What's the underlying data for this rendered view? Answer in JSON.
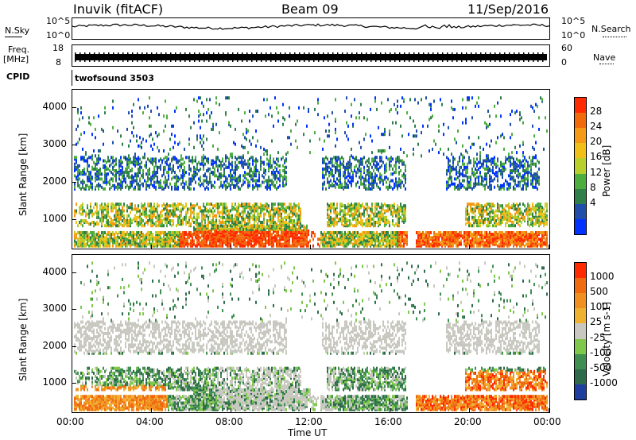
{
  "header": {
    "station": "Inuvik (fitACF)",
    "beam": "Beam 09",
    "date": "11/Sep/2016"
  },
  "top_panels": {
    "nsky_label": "N.Sky",
    "nsky_ticks": [
      "10^5",
      "10^0"
    ],
    "nsearch_label": "N.Search",
    "nsearch_ticks": [
      "10^5",
      "10^0"
    ],
    "freq_label": "Freq.",
    "freq_unit": "[MHz]",
    "freq_ticks": [
      "18",
      "8"
    ],
    "nave_label": "Nave",
    "nave_ticks": [
      "60",
      "0"
    ],
    "cpid_label": "CPID",
    "cpid_value": "twofsound 3503"
  },
  "chart_data": [
    {
      "type": "heatmap",
      "name": "power-panel",
      "ylabel": "Slant Range [km]",
      "ylim": [
        180,
        4500
      ],
      "yticks": [
        "1000",
        "2000",
        "3000",
        "4000"
      ],
      "colorbar_label": "Power [dB]",
      "colorbar_ticks": [
        "28",
        "24",
        "20",
        "16",
        "12",
        "8",
        "4"
      ],
      "colors": [
        "#0033ff",
        "#1f4fa8",
        "#2f7f4a",
        "#4cae3c",
        "#b7d02c",
        "#f0c018",
        "#f49a14",
        "#f06a0c",
        "#ff2a00"
      ]
    },
    {
      "type": "heatmap",
      "name": "velocity-panel",
      "ylabel": "Slant Range [km]",
      "ylim": [
        180,
        4500
      ],
      "yticks": [
        "1000",
        "2000",
        "3000",
        "4000"
      ],
      "xticks": [
        "00:00",
        "04:00",
        "08:00",
        "12:00",
        "16:00",
        "20:00",
        "00:00"
      ],
      "xlabel": "Time UT",
      "colorbar_label": "Velocity [m s-1]",
      "colorbar_ticks": [
        "1000",
        "500",
        "100",
        "25",
        "-25",
        "-100",
        "-500",
        "-1000"
      ],
      "colors": [
        "#1f3fa0",
        "#2e6b4a",
        "#3f8f52",
        "#7fc84a",
        "#c8c8c0",
        "#f0b030",
        "#f09020",
        "#f06a10",
        "#ff2a00"
      ]
    }
  ]
}
